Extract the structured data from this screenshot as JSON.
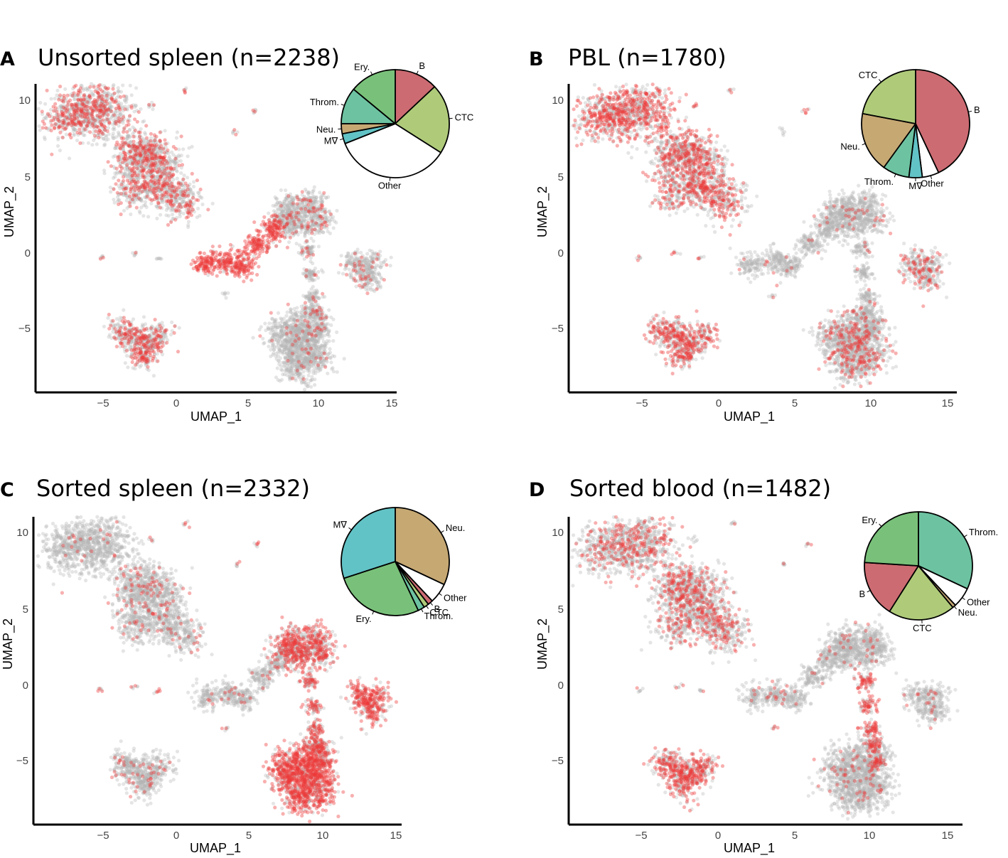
{
  "figure": {
    "point_colors": {
      "background": "#b4b4b4",
      "highlight": "#ee3a3a"
    },
    "slice_colors": {
      "B": "#cd6b72",
      "CTC": "#afcb7a",
      "Other": "#ffffff",
      "M∇": "#62c3c6",
      "Neu.": "#c6a873",
      "Throm.": "#6dc3a1",
      "Ery.": "#79c17a"
    }
  },
  "chart_data": [
    {
      "type": "scatter",
      "panel": "A",
      "title": "Unsorted spleen (n=2238)",
      "xlabel": "UMAP_1",
      "ylabel": "UMAP_2",
      "xlim": [
        -10,
        15.5
      ],
      "ylim": [
        -9,
        11
      ],
      "xticks": [
        "−5",
        "0",
        "5",
        "10",
        "15"
      ],
      "yticks": [
        "−5",
        "0",
        "5",
        "10"
      ],
      "grid": false,
      "highlight": {
        "TL": 0.35,
        "MID": 0.3,
        "TOPISL": 0.12,
        "ERY": 0.9,
        "BR": 0.04,
        "BL": 0.35,
        "RIGHT": 0.08,
        "TOPR": 0.12,
        "LOWER": 0.06,
        "SMALL": 0.3
      },
      "pie": {
        "placement": "top-right",
        "slices": [
          {
            "label": "B",
            "value": 13
          },
          {
            "label": "CTC",
            "value": 21
          },
          {
            "label": "Other",
            "value": 35
          },
          {
            "label": "M∇",
            "value": 3
          },
          {
            "label": "Neu.",
            "value": 3
          },
          {
            "label": "Throm.",
            "value": 11
          },
          {
            "label": "Ery.",
            "value": 14
          }
        ]
      }
    },
    {
      "type": "scatter",
      "panel": "B",
      "title": "PBL (n=1780)",
      "xlabel": "UMAP_1",
      "ylabel": "UMAP_2",
      "xlim": [
        -10,
        15.5
      ],
      "ylim": [
        -9,
        11
      ],
      "xticks": [
        "−5",
        "0",
        "5",
        "10",
        "15"
      ],
      "yticks": [
        "−5",
        "0",
        "5",
        "10"
      ],
      "grid": false,
      "highlight": {
        "TL": 0.5,
        "MID": 0.4,
        "TOPISL": 0.05,
        "ERY": 0.03,
        "BR": 0.18,
        "BL": 0.5,
        "RIGHT": 0.22,
        "TOPR": 0.04,
        "LOWER": 0.05,
        "SMALL": 0.3
      },
      "pie": {
        "placement": "top-right",
        "slices": [
          {
            "label": "B",
            "value": 43
          },
          {
            "label": "Other",
            "value": 5
          },
          {
            "label": "M∇",
            "value": 4
          },
          {
            "label": "Throm.",
            "value": 8
          },
          {
            "label": "Neu.",
            "value": 18
          },
          {
            "label": "CTC",
            "value": 22
          }
        ]
      }
    },
    {
      "type": "scatter",
      "panel": "C",
      "title": "Sorted spleen (n=2332)",
      "xlabel": "UMAP_1",
      "ylabel": "UMAP_2",
      "xlim": [
        -10,
        15.5
      ],
      "ylim": [
        -9,
        11
      ],
      "xticks": [
        "−5",
        "0",
        "5",
        "10",
        "15"
      ],
      "yticks": [
        "−5",
        "0",
        "5",
        "10"
      ],
      "grid": false,
      "highlight": {
        "TL": 0.03,
        "MID": 0.08,
        "TOPISL": 0.5,
        "ERY": 0.06,
        "BR": 0.75,
        "BL": 0.08,
        "RIGHT": 0.7,
        "TOPR": 0.55,
        "LOWER": 0.45,
        "SMALL": 0.4
      },
      "pie": {
        "placement": "top-right",
        "slices": [
          {
            "label": "Neu.",
            "value": 32
          },
          {
            "label": "Other",
            "value": 6
          },
          {
            "label": "B",
            "value": 1.5
          },
          {
            "label": "CTC",
            "value": 1.5
          },
          {
            "label": "Throm.",
            "value": 2
          },
          {
            "label": "Ery.",
            "value": 27
          },
          {
            "label": "M∇",
            "value": 30
          }
        ]
      }
    },
    {
      "type": "scatter",
      "panel": "D",
      "title": "Sorted blood (n=1482)",
      "xlabel": "UMAP_1",
      "ylabel": "UMAP_2",
      "xlim": [
        -10,
        15.5
      ],
      "ylim": [
        -9,
        11
      ],
      "xticks": [
        "−5",
        "0",
        "5",
        "10",
        "15"
      ],
      "yticks": [
        "−5",
        "0",
        "5",
        "10"
      ],
      "grid": false,
      "highlight": {
        "TL": 0.25,
        "MID": 0.28,
        "TOPISL": 0.05,
        "ERY": 0.05,
        "BR": 0.05,
        "BL": 0.55,
        "RIGHT": 0.05,
        "TOPR": 0.65,
        "LOWER": 0.06,
        "SMALL": 0.3
      },
      "pie": {
        "placement": "top-right",
        "slices": [
          {
            "label": "Throm.",
            "value": 32
          },
          {
            "label": "Other",
            "value": 6
          },
          {
            "label": "Neu.",
            "value": 1
          },
          {
            "label": "CTC",
            "value": 20
          },
          {
            "label": "B",
            "value": 17
          },
          {
            "label": "Ery.",
            "value": 24
          }
        ]
      }
    }
  ]
}
